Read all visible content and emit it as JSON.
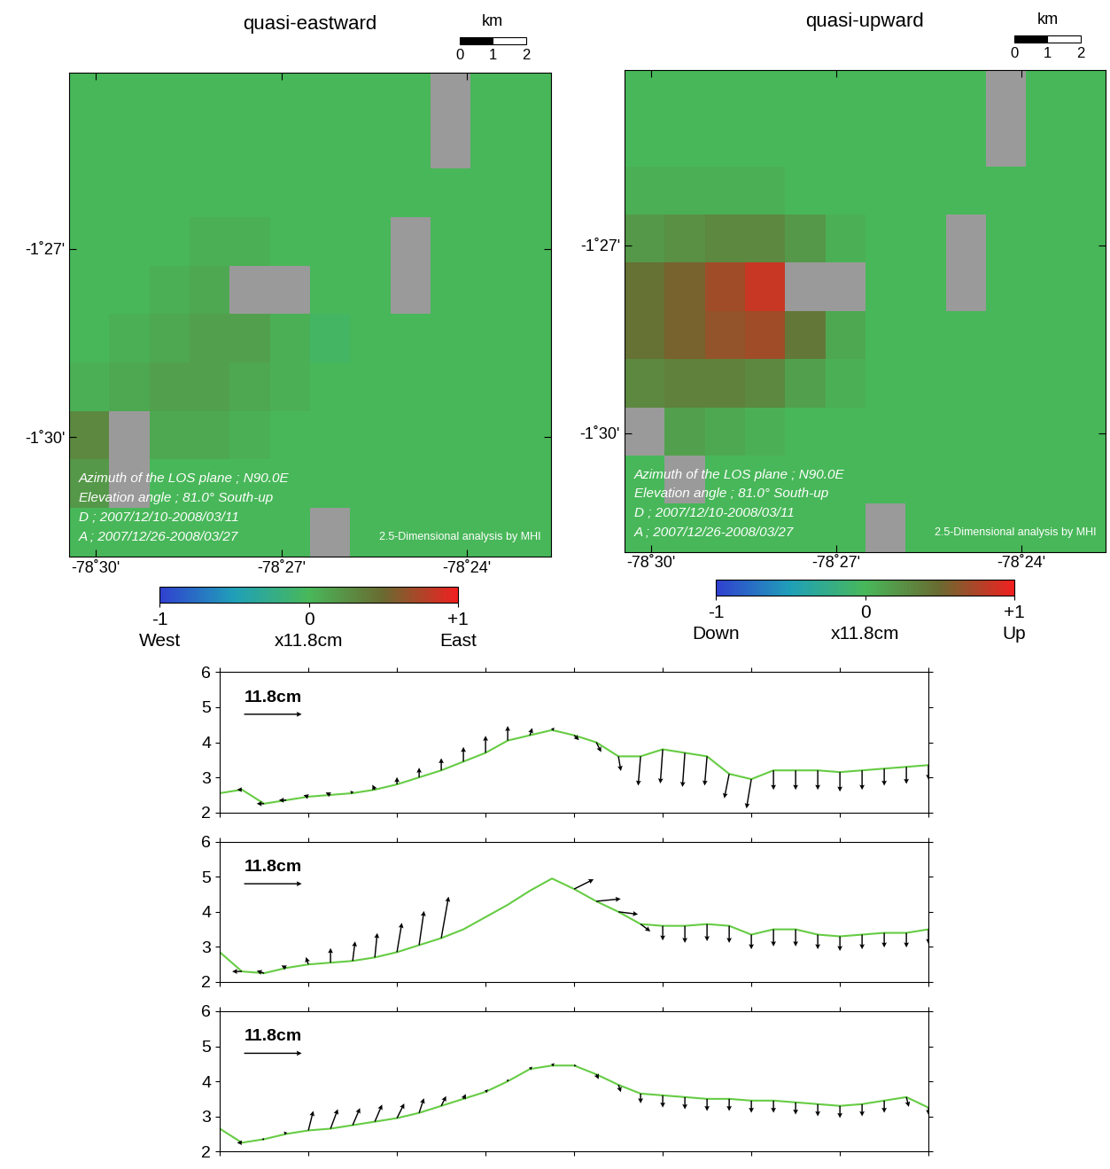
{
  "chart_data": [
    {
      "type": "map",
      "title": "quasi-eastward",
      "xlim": [
        -78.5072,
        -78.3773
      ],
      "ylim": [
        -1.5316,
        -1.4033
      ],
      "xticks": [
        {
          "value": -78.5,
          "label": "-78˚30'"
        },
        {
          "value": -78.45,
          "label": "-78˚27'"
        },
        {
          "value": -78.4,
          "label": "-78˚24'"
        }
      ],
      "yticks": [
        {
          "value": -1.45,
          "label": "-1˚27'"
        },
        {
          "value": -1.5,
          "label": "-1˚30'"
        }
      ],
      "scale_bar": {
        "label": "km",
        "ticks": [
          0,
          1,
          2
        ]
      },
      "info": [
        "Azimuth of the LOS plane ; N90.0E",
        "Elevation angle ; 81.0° South-up",
        "D ; 2007/12/10-2008/03/11",
        "A ; 2007/12/26-2008/03/27"
      ],
      "credit": "2.5-Dimensional analysis by MHI",
      "cells": [
        [
          0,
          0,
          0,
          0,
          0,
          0,
          0,
          0,
          0,
          null,
          0,
          0
        ],
        [
          0,
          0,
          0,
          0,
          0,
          0,
          0,
          0,
          0,
          null,
          0,
          0
        ],
        [
          0,
          0,
          0,
          0,
          0,
          0,
          0,
          0,
          0,
          0,
          0,
          0
        ],
        [
          0,
          0,
          0,
          0.05,
          0.05,
          0,
          0,
          0,
          null,
          0,
          0,
          0
        ],
        [
          0,
          0,
          0.05,
          0.1,
          null,
          null,
          0,
          0,
          null,
          0,
          0,
          0
        ],
        [
          0,
          0.05,
          0.1,
          0.15,
          0.15,
          0.05,
          -0.05,
          0,
          0,
          0,
          0,
          0
        ],
        [
          0.05,
          0.1,
          0.15,
          0.15,
          0.1,
          0.05,
          0,
          0,
          0,
          0,
          0,
          0
        ],
        [
          0.3,
          null,
          0.1,
          0.1,
          0.05,
          0,
          0,
          0,
          0,
          0,
          0,
          0
        ],
        [
          0.2,
          null,
          0,
          0,
          0,
          0,
          0,
          0,
          0,
          0,
          0,
          0
        ],
        [
          0,
          0,
          0,
          0,
          0,
          0,
          null,
          0,
          0,
          0,
          0,
          0
        ]
      ],
      "colorbar": {
        "clim": [
          -1,
          1
        ],
        "ticks": [
          {
            "value": -1,
            "label": "-1"
          },
          0,
          {
            "value": 1,
            "label": "+1"
          }
        ],
        "annotations": [
          "West",
          "x11.8cm",
          "East"
        ]
      }
    },
    {
      "type": "map",
      "title": "quasi-upward",
      "xlim": [
        -78.5072,
        -78.3773
      ],
      "ylim": [
        -1.5316,
        -1.4033
      ],
      "xticks": [
        {
          "value": -78.5,
          "label": "-78˚30'"
        },
        {
          "value": -78.45,
          "label": "-78˚27'"
        },
        {
          "value": -78.4,
          "label": "-78˚24'"
        }
      ],
      "yticks": [
        {
          "value": -1.45,
          "label": "-1˚27'"
        },
        {
          "value": -1.5,
          "label": "-1˚30'"
        }
      ],
      "scale_bar": {
        "label": "km",
        "ticks": [
          0,
          1,
          2
        ]
      },
      "info": [
        "Azimuth of the LOS plane ; N90.0E",
        "Elevation angle ; 81.0° South-up",
        "D ; 2007/12/10-2008/03/11",
        "A ; 2007/12/26-2008/03/27"
      ],
      "credit": "2.5-Dimensional analysis by MHI",
      "cells": [
        [
          0,
          0,
          0,
          0,
          0,
          0,
          0,
          0,
          0,
          null,
          0,
          0
        ],
        [
          0,
          0,
          0,
          0,
          0,
          0,
          0,
          0,
          0,
          null,
          0,
          0
        ],
        [
          0.05,
          0.05,
          0.05,
          0.05,
          0,
          0,
          0,
          0,
          0,
          0,
          0,
          0
        ],
        [
          0.2,
          0.25,
          0.3,
          0.3,
          0.2,
          0.05,
          0,
          0,
          null,
          0,
          0,
          0
        ],
        [
          0.45,
          0.55,
          0.7,
          0.85,
          null,
          null,
          0,
          0,
          null,
          0,
          0,
          0
        ],
        [
          0.45,
          0.55,
          0.65,
          0.7,
          0.4,
          0.1,
          0,
          0,
          0,
          0,
          0,
          0
        ],
        [
          0.3,
          0.35,
          0.35,
          0.3,
          0.15,
          0.05,
          0,
          0,
          0,
          0,
          0,
          0
        ],
        [
          null,
          0.15,
          0.1,
          0.05,
          0,
          0,
          0,
          0,
          0,
          0,
          0,
          0
        ],
        [
          0,
          null,
          0,
          0,
          0,
          0,
          0,
          0,
          0,
          0,
          0,
          0
        ],
        [
          0,
          0,
          0,
          0,
          0,
          0,
          null,
          0,
          0,
          0,
          0,
          0
        ]
      ],
      "colorbar": {
        "clim": [
          -1,
          1
        ],
        "ticks": [
          {
            "value": -1,
            "label": "-1"
          },
          0,
          {
            "value": 1,
            "label": "+1"
          }
        ],
        "annotations": [
          "Down",
          "x11.8cm",
          "Up"
        ]
      }
    },
    {
      "type": "quiver",
      "color": "#66cc44",
      "xlim": [
        0,
        8
      ],
      "xticks": [
        0,
        1,
        2,
        3,
        4,
        5,
        6,
        7,
        8
      ],
      "ylim": [
        2,
        6
      ],
      "yticks": [
        2,
        3,
        4,
        5,
        6
      ],
      "tick_labels": "y",
      "reference_arrow": 11.8,
      "reference_label": "11.8cm",
      "x": [
        0,
        0.25,
        0.5,
        0.75,
        1,
        1.25,
        1.5,
        1.75,
        2,
        2.25,
        2.5,
        2.75,
        3,
        3.25,
        3.5,
        3.75,
        4,
        4.25,
        4.5,
        4.75,
        5,
        5.25,
        5.5,
        5.75,
        6,
        6.25,
        6.5,
        6.75,
        7,
        7.25,
        7.5,
        7.75,
        8
      ],
      "elevation": [
        2.55,
        2.65,
        2.25,
        2.35,
        2.45,
        2.5,
        2.55,
        2.65,
        2.8,
        3.0,
        3.2,
        3.45,
        3.7,
        4.05,
        4.2,
        4.35,
        4.2,
        4.0,
        3.6,
        3.6,
        3.8,
        3.7,
        3.6,
        3.1,
        2.95,
        3.2,
        3.2,
        3.2,
        3.15,
        3.2,
        3.25,
        3.3,
        3.35
      ],
      "east": [
        -1,
        -1,
        -1.5,
        -1.5,
        -1,
        -1,
        -0.5,
        -0.5,
        0,
        0,
        0,
        0,
        0,
        0,
        0.5,
        0.5,
        1,
        1,
        0.5,
        -0.5,
        -0.5,
        -0.5,
        -0.5,
        -1,
        -1,
        0,
        0,
        0,
        0,
        0,
        0,
        0,
        0
      ],
      "up": [
        0.5,
        0,
        0,
        0,
        0.3,
        0.5,
        0.5,
        1,
        1.5,
        2,
        2.5,
        3,
        3.5,
        3,
        1.5,
        0.5,
        -1,
        -2,
        -3,
        -6,
        -7,
        -7,
        -6,
        -5,
        -6,
        -4,
        -4,
        -4,
        -4,
        -4,
        -3.5,
        -3.5,
        -3
      ]
    },
    {
      "type": "quiver",
      "color": "#66cc44",
      "xlim": [
        0,
        8
      ],
      "xticks": [
        0,
        1,
        2,
        3,
        4,
        5,
        6,
        7,
        8
      ],
      "ylim": [
        2,
        6
      ],
      "yticks": [
        2,
        3,
        4,
        5,
        6
      ],
      "tick_labels": "y",
      "reference_arrow": 11.8,
      "reference_label": "11.8cm",
      "x": [
        0,
        0.25,
        0.5,
        0.75,
        1,
        1.25,
        1.5,
        1.75,
        2,
        2.25,
        2.5,
        2.75,
        3,
        3.25,
        3.5,
        3.75,
        4,
        4.25,
        4.5,
        4.75,
        5,
        5.25,
        5.5,
        5.75,
        6,
        6.25,
        6.5,
        6.75,
        7,
        7.25,
        7.5,
        7.75,
        8
      ],
      "elevation": [
        2.85,
        2.3,
        2.25,
        2.4,
        2.5,
        2.55,
        2.6,
        2.7,
        2.85,
        3.05,
        3.25,
        3.5,
        3.85,
        4.2,
        4.6,
        4.95,
        4.65,
        4.3,
        4.0,
        3.65,
        3.6,
        3.6,
        3.65,
        3.6,
        3.35,
        3.5,
        3.5,
        3.35,
        3.3,
        3.35,
        3.4,
        3.4,
        3.5
      ],
      "east": [
        -2,
        -2,
        -1.5,
        -1,
        -0.5,
        0,
        0.5,
        0.5,
        1,
        1,
        1.5,
        null,
        null,
        null,
        null,
        null,
        4,
        5,
        4,
        2,
        0,
        0,
        0,
        0,
        0,
        0,
        0,
        0,
        0,
        0,
        0,
        0,
        0
      ],
      "up": [
        0,
        0,
        0.5,
        0.5,
        1.5,
        3,
        4,
        5,
        6,
        7,
        8.5,
        null,
        null,
        null,
        null,
        null,
        2,
        0.5,
        -0.5,
        -1.5,
        -3,
        -3.5,
        -3.5,
        -3.5,
        -3,
        -3.5,
        -3.5,
        -3,
        -3,
        -3,
        -3,
        -3,
        -3
      ]
    },
    {
      "type": "quiver",
      "color": "#66cc44",
      "xlim": [
        0,
        8
      ],
      "xticks": [
        0,
        1,
        2,
        3,
        4,
        5,
        6,
        7,
        8
      ],
      "ylim": [
        2,
        6
      ],
      "yticks": [
        2,
        3,
        4,
        5,
        6
      ],
      "tick_labels": "y",
      "reference_arrow": 11.8,
      "reference_label": "11.8cm",
      "x": [
        0,
        0.25,
        0.5,
        0.75,
        1,
        1.25,
        1.5,
        1.75,
        2,
        2.25,
        2.5,
        2.75,
        3,
        3.25,
        3.5,
        3.75,
        4,
        4.25,
        4.5,
        4.75,
        5,
        5.25,
        5.5,
        5.75,
        6,
        6.25,
        6.5,
        6.75,
        7,
        7.25,
        7.5,
        7.75,
        8
      ],
      "elevation": [
        2.65,
        2.25,
        2.35,
        2.5,
        2.6,
        2.65,
        2.75,
        2.85,
        2.95,
        3.1,
        3.3,
        3.5,
        3.7,
        4.0,
        4.35,
        4.45,
        4.45,
        4.2,
        3.9,
        3.65,
        3.6,
        3.55,
        3.5,
        3.5,
        3.45,
        3.45,
        3.4,
        3.35,
        3.3,
        3.35,
        3.45,
        3.55,
        3.25
      ],
      "east": [
        -1,
        -1,
        -0.5,
        -0.5,
        1,
        1.5,
        1.5,
        1.5,
        1.5,
        1,
        1,
        0.5,
        0.5,
        0,
        0.5,
        0.5,
        0.5,
        0.5,
        0.5,
        0,
        0,
        0,
        0,
        0,
        0,
        0,
        0,
        0,
        0,
        0,
        0,
        0.5,
        0
      ],
      "up": [
        0,
        0,
        0,
        0.5,
        4,
        4,
        3.5,
        3.5,
        3,
        3,
        2,
        1,
        0.5,
        0.5,
        0.5,
        0.5,
        0,
        -1,
        -1.5,
        -2,
        -2.5,
        -2.5,
        -2.5,
        -2.5,
        -2.5,
        -2.5,
        -2.5,
        -2.5,
        -2.5,
        -2.5,
        -2.5,
        -2,
        -1.5
      ]
    }
  ]
}
